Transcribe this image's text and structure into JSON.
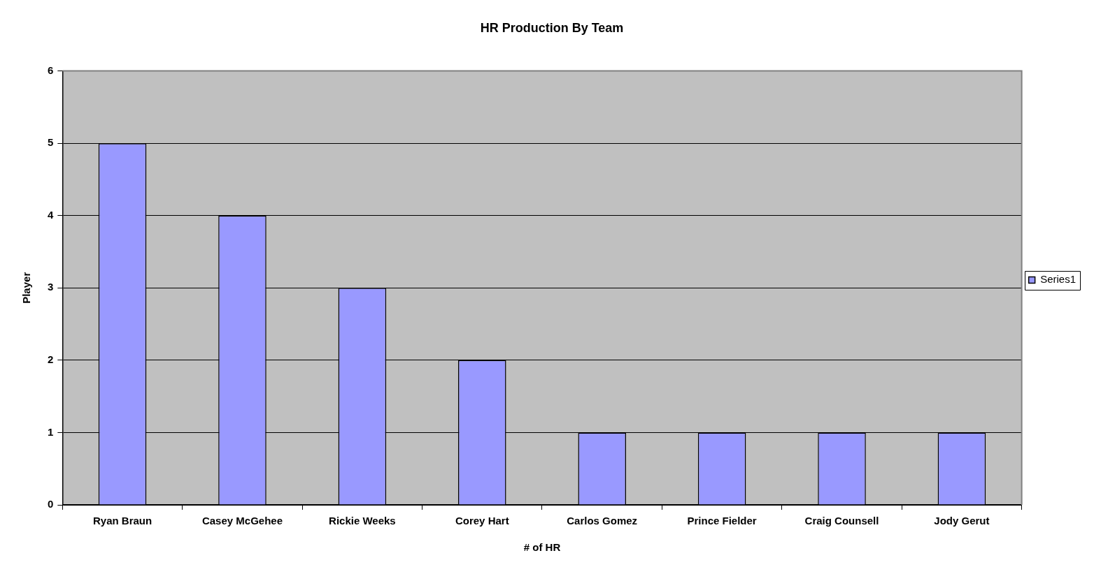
{
  "chart_data": {
    "type": "bar",
    "title": "HR Production By Team",
    "xlabel": "# of HR",
    "ylabel": "Player",
    "categories": [
      "Ryan Braun",
      "Casey McGehee",
      "Rickie Weeks",
      "Corey Hart",
      "Carlos Gomez",
      "Prince Fielder",
      "Craig Counsell",
      "Jody Gerut"
    ],
    "series": [
      {
        "name": "Series1",
        "color": "#9999ff",
        "values": [
          5,
          4,
          3,
          2,
          1,
          1,
          1,
          1
        ]
      }
    ],
    "ylim": [
      0,
      6
    ],
    "yticks": [
      0,
      1,
      2,
      3,
      4,
      5,
      6
    ],
    "grid": "y",
    "legend": "right"
  }
}
